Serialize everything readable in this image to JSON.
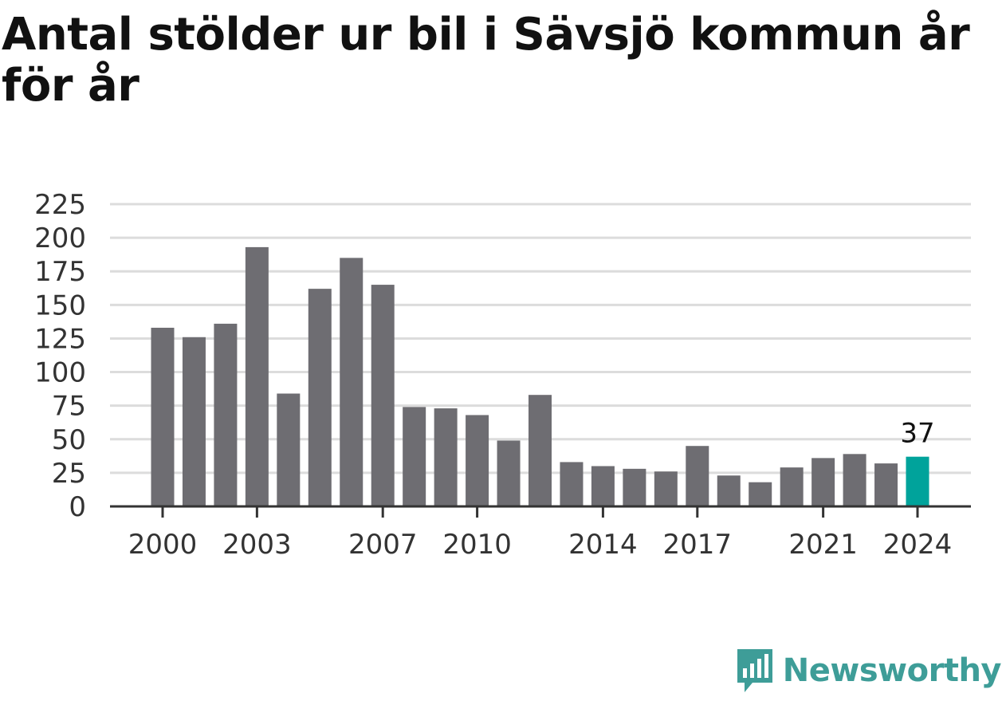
{
  "title": "Antal stölder ur bil i Sävsjö kommun år för år",
  "brand": {
    "name": "Newsworthy",
    "icon": "newsworthy-logo-icon"
  },
  "colors": {
    "bar": "#6e6d72",
    "highlight": "#00a39b",
    "grid": "#dcdcdc",
    "axis": "#333333",
    "brand": "#3e9d98"
  },
  "chart_data": {
    "type": "bar",
    "categories": [
      "2000",
      "2001",
      "2002",
      "2003",
      "2004",
      "2005",
      "2006",
      "2007",
      "2008",
      "2009",
      "2010",
      "2011",
      "2012",
      "2013",
      "2014",
      "2015",
      "2016",
      "2017",
      "2018",
      "2019",
      "2020",
      "2021",
      "2022",
      "2023",
      "2024"
    ],
    "values": [
      133,
      126,
      136,
      193,
      84,
      162,
      185,
      165,
      74,
      73,
      68,
      49,
      83,
      33,
      30,
      28,
      26,
      45,
      23,
      18,
      29,
      36,
      39,
      32,
      37
    ],
    "ylim": [
      0,
      225
    ],
    "yticks": [
      0,
      25,
      50,
      75,
      100,
      125,
      150,
      175,
      200,
      225
    ],
    "xtick_labels": [
      "2000",
      "2003",
      "2007",
      "2010",
      "2014",
      "2017",
      "2021",
      "2024"
    ],
    "highlight": {
      "category": "2024",
      "label": "37"
    },
    "grid": true,
    "legend": false
  }
}
